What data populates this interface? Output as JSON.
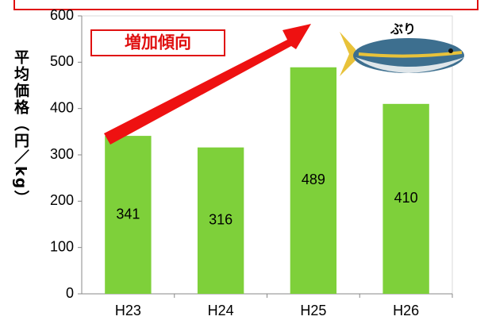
{
  "chart_data": {
    "type": "bar",
    "y_label": "平均価格（円／kg）",
    "categories": [
      "H23",
      "H24",
      "H25",
      "H26"
    ],
    "values": [
      341,
      316,
      489,
      410
    ],
    "color": "#7ed03a",
    "ylim": [
      0,
      600
    ],
    "yticks": [
      0,
      100,
      200,
      300,
      400,
      500,
      600
    ],
    "annotations": [
      "増加傾向",
      "ぶり"
    ]
  }
}
